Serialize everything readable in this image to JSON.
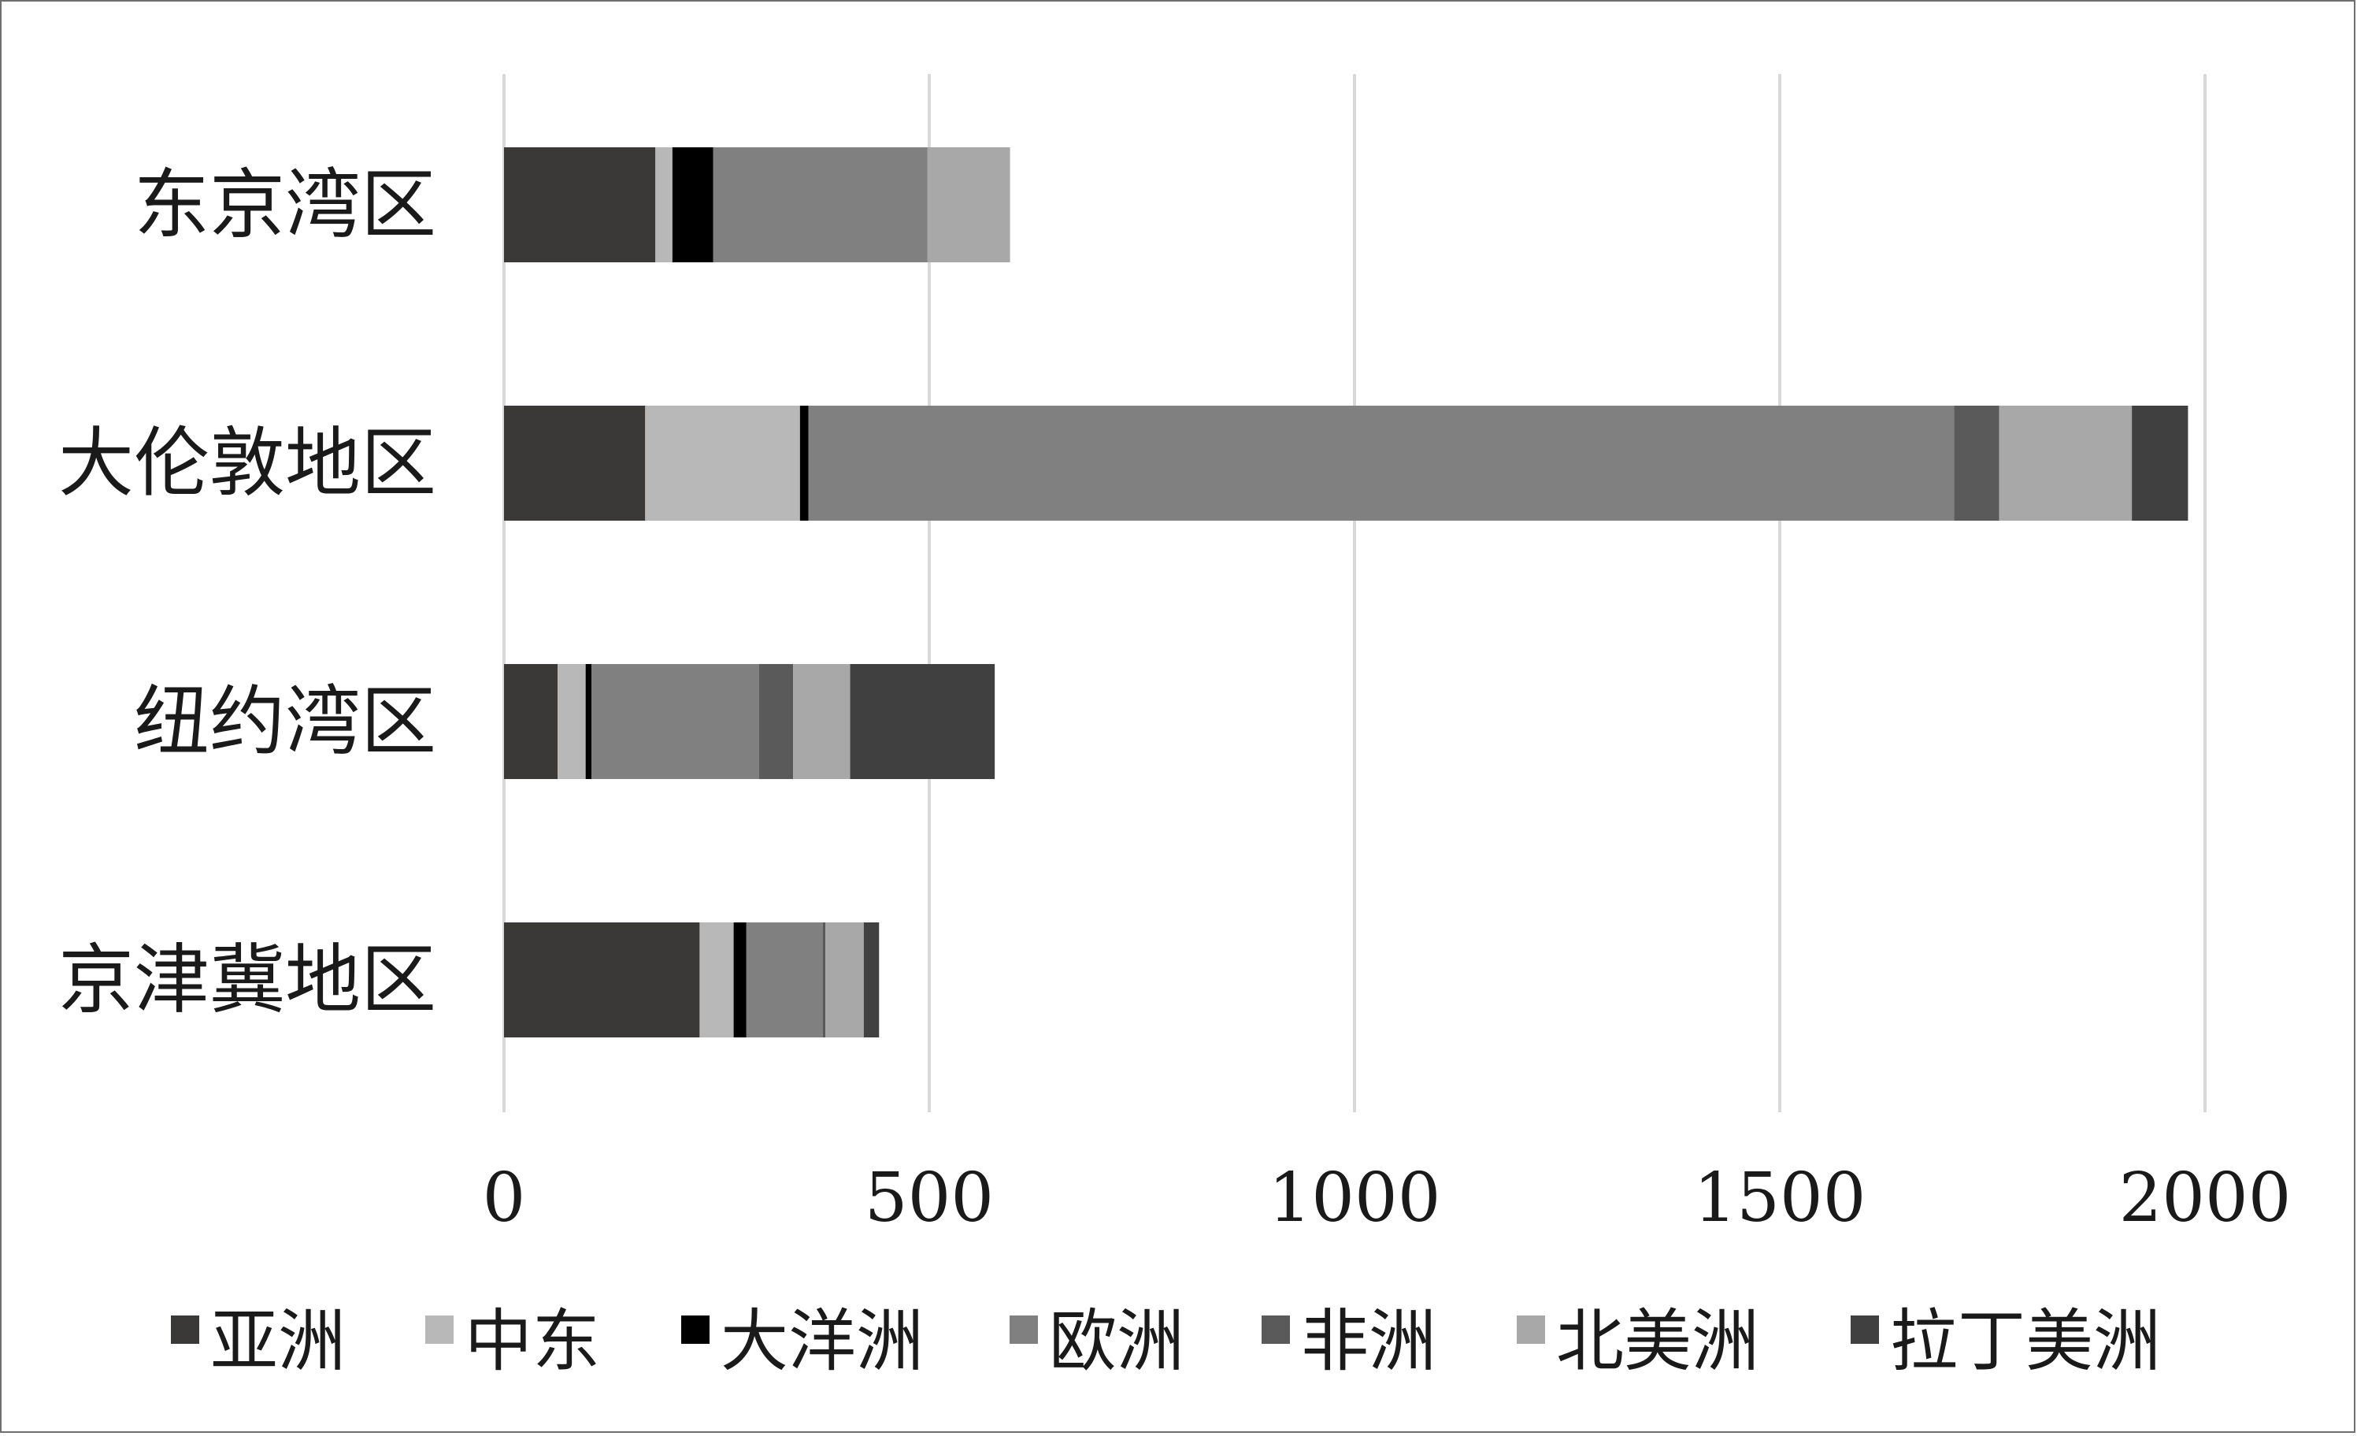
{
  "chart_data": {
    "type": "bar",
    "orientation": "horizontal",
    "stacked": true,
    "categories": [
      "东京湾区",
      "大伦敦地区",
      "纽约湾区",
      "京津冀地区"
    ],
    "series": [
      {
        "name": "亚洲",
        "color": "#3b3838",
        "values": [
          178,
          166,
          63,
          230
        ]
      },
      {
        "name": "中东",
        "color": "#b8b8b8",
        "values": [
          20,
          182,
          33,
          40
        ]
      },
      {
        "name": "大洋洲",
        "color": "#000000",
        "values": [
          48,
          10,
          7,
          15
        ]
      },
      {
        "name": "欧洲",
        "color": "#808080",
        "values": [
          252,
          1347,
          197,
          90
        ]
      },
      {
        "name": "非洲",
        "color": "#5a5a5a",
        "values": [
          0,
          53,
          40,
          3
        ]
      },
      {
        "name": "北美洲",
        "color": "#a8a8a8",
        "values": [
          97,
          156,
          67,
          45
        ]
      },
      {
        "name": "拉丁美洲",
        "color": "#404040",
        "values": [
          0,
          66,
          170,
          18
        ]
      }
    ],
    "xlim": [
      0,
      2000
    ],
    "xticks": [
      0,
      500,
      1000,
      1500,
      2000
    ],
    "grid": true,
    "legend_position": "bottom"
  }
}
